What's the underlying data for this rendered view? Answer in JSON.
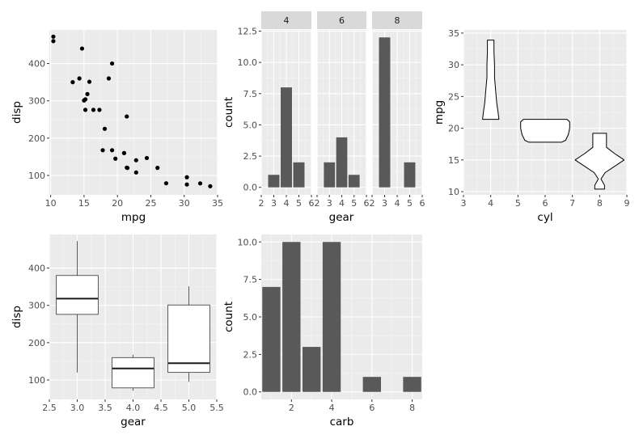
{
  "colors": {
    "panel_bg": "#ebebeb",
    "grid_major": "#ffffff",
    "grid_minor": "#f5f5f5",
    "bar_fill": "#595959",
    "point": "#000000",
    "strip_bg": "#d9d9d9",
    "tick_text": "#4d4d4d"
  },
  "chart_data": [
    {
      "id": "scatter-disp-mpg",
      "type": "scatter",
      "xlabel": "mpg",
      "ylabel": "disp",
      "xlim": [
        9.8,
        35.0
      ],
      "ylim": [
        48,
        490
      ],
      "xticks": [
        10,
        15,
        20,
        25,
        30,
        35
      ],
      "yticks": [
        100,
        200,
        300,
        400
      ],
      "points": [
        [
          21.0,
          160
        ],
        [
          21.0,
          160
        ],
        [
          22.8,
          108
        ],
        [
          21.4,
          258
        ],
        [
          18.7,
          360
        ],
        [
          18.1,
          225
        ],
        [
          14.3,
          360
        ],
        [
          24.4,
          146.7
        ],
        [
          22.8,
          140.8
        ],
        [
          19.2,
          167.6
        ],
        [
          17.8,
          167.6
        ],
        [
          16.4,
          275.8
        ],
        [
          17.3,
          275.8
        ],
        [
          15.2,
          275.8
        ],
        [
          10.4,
          472
        ],
        [
          10.4,
          460
        ],
        [
          14.7,
          440
        ],
        [
          32.4,
          78.7
        ],
        [
          30.4,
          75.7
        ],
        [
          33.9,
          71.1
        ],
        [
          21.5,
          120.1
        ],
        [
          15.5,
          318
        ],
        [
          15.2,
          304
        ],
        [
          13.3,
          350
        ],
        [
          19.2,
          400
        ],
        [
          27.3,
          79
        ],
        [
          26.0,
          120.3
        ],
        [
          30.4,
          95.1
        ],
        [
          15.8,
          351
        ],
        [
          19.7,
          145
        ],
        [
          15.0,
          301
        ],
        [
          21.4,
          121
        ]
      ]
    },
    {
      "id": "faceted-bar-gear-by-cyl",
      "type": "bar",
      "xlabel": "gear",
      "ylabel": "count",
      "xlim": [
        2,
        6
      ],
      "ylim": [
        -0.6,
        12.6
      ],
      "xticks": [
        2,
        3,
        4,
        5,
        6
      ],
      "yticks": [
        0.0,
        2.5,
        5.0,
        7.5,
        10.0,
        12.5
      ],
      "xtick_labels": [
        "2",
        "3",
        "4",
        "5",
        "6"
      ],
      "ytick_labels": [
        "0.0",
        "2.5",
        "5.0",
        "7.5",
        "10.0",
        "12.5"
      ],
      "facets": [
        {
          "label": "4",
          "categories": [
            3,
            4,
            5
          ],
          "values": [
            1,
            8,
            2
          ]
        },
        {
          "label": "6",
          "categories": [
            3,
            4,
            5
          ],
          "values": [
            2,
            4,
            1
          ]
        },
        {
          "label": "8",
          "categories": [
            3,
            4,
            5
          ],
          "values": [
            12,
            0,
            2
          ]
        }
      ]
    },
    {
      "id": "violin-mpg-cyl",
      "type": "violin",
      "xlabel": "cyl",
      "ylabel": "mpg",
      "xlim": [
        3,
        9
      ],
      "ylim": [
        9.5,
        35.5
      ],
      "xticks": [
        3,
        4,
        5,
        6,
        7,
        8,
        9
      ],
      "yticks": [
        10,
        15,
        20,
        25,
        30,
        35
      ],
      "violins": [
        {
          "x": 4,
          "profile": [
            [
              21.4,
              0.3
            ],
            [
              22.5,
              0.27
            ],
            [
              24,
              0.22
            ],
            [
              26,
              0.18
            ],
            [
              28,
              0.14
            ],
            [
              30,
              0.14
            ],
            [
              32,
              0.12
            ],
            [
              33.9,
              0.12
            ]
          ]
        },
        {
          "x": 6,
          "profile": [
            [
              17.8,
              0.6
            ],
            [
              18.1,
              0.75
            ],
            [
              19,
              0.85
            ],
            [
              20,
              0.9
            ],
            [
              21,
              0.9
            ],
            [
              21.4,
              0.8
            ]
          ]
        },
        {
          "x": 8,
          "profile": [
            [
              10.4,
              0.18
            ],
            [
              11,
              0.18
            ],
            [
              12,
              0.05
            ],
            [
              13,
              0.2
            ],
            [
              14,
              0.55
            ],
            [
              15,
              0.9
            ],
            [
              16,
              0.55
            ],
            [
              17,
              0.25
            ],
            [
              18,
              0.25
            ],
            [
              19.2,
              0.25
            ]
          ]
        }
      ]
    },
    {
      "id": "boxplot-disp-gear",
      "type": "boxplot",
      "xlabel": "gear",
      "ylabel": "disp",
      "xlim": [
        2.5,
        5.5
      ],
      "ylim": [
        48,
        490
      ],
      "xticks": [
        2.5,
        3.0,
        3.5,
        4.0,
        4.5,
        5.0,
        5.5
      ],
      "yticks": [
        100,
        200,
        300,
        400
      ],
      "xtick_labels": [
        "2.5",
        "3.0",
        "3.5",
        "4.0",
        "4.5",
        "5.0",
        "5.5"
      ],
      "boxes": [
        {
          "x": 3,
          "min": 120.1,
          "q1": 275.8,
          "median": 318,
          "q3": 380,
          "max": 472
        },
        {
          "x": 4,
          "min": 71.1,
          "q1": 78.8,
          "median": 130.9,
          "q3": 160,
          "max": 167.6
        },
        {
          "x": 5,
          "min": 95.1,
          "q1": 120.3,
          "median": 145,
          "q3": 301,
          "max": 351
        }
      ]
    },
    {
      "id": "bar-carb",
      "type": "bar",
      "xlabel": "carb",
      "ylabel": "count",
      "xlim": [
        0.5,
        8.5
      ],
      "ylim": [
        -0.5,
        10.5
      ],
      "xticks": [
        2,
        4,
        6,
        8
      ],
      "yticks": [
        0.0,
        2.5,
        5.0,
        7.5,
        10.0
      ],
      "ytick_labels": [
        "0.0",
        "2.5",
        "5.0",
        "7.5",
        "10.0"
      ],
      "categories": [
        1,
        2,
        3,
        4,
        6,
        8
      ],
      "values": [
        7,
        10,
        3,
        10,
        1,
        1
      ]
    }
  ]
}
